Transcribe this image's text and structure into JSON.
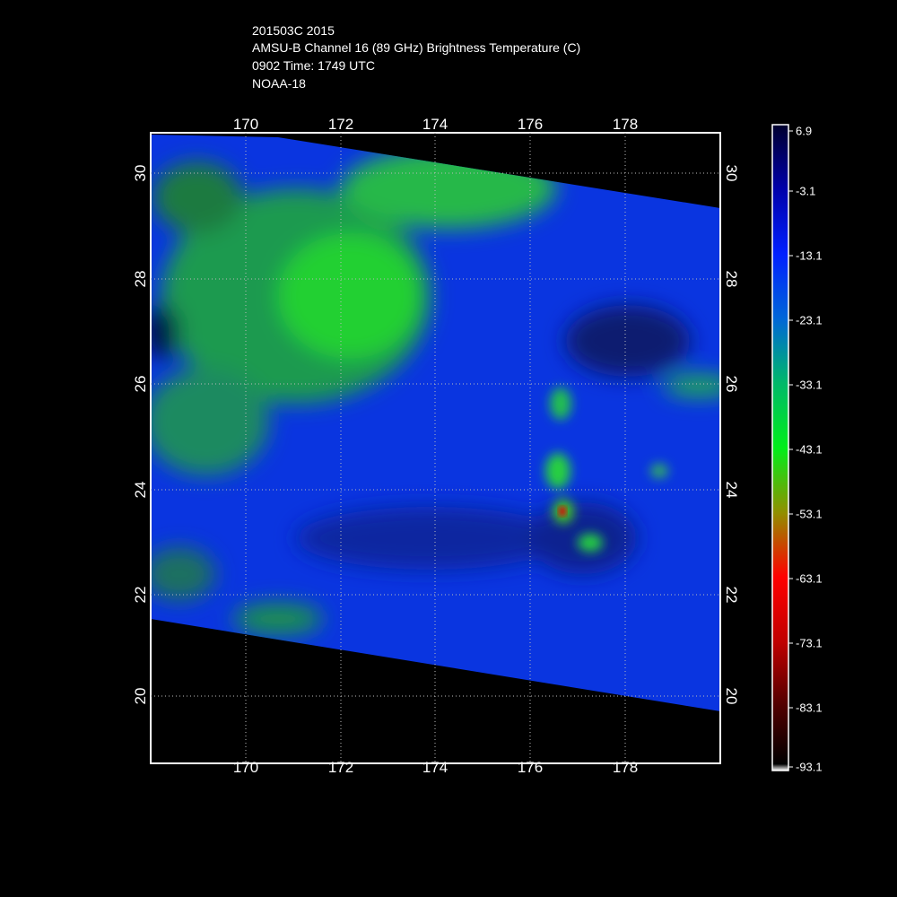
{
  "header": {
    "line1": "201503C 2015",
    "line2": "AMSU-B Channel 16 (89 GHz) Brightness Temperature (C)",
    "line3": "0902 Time: 1749 UTC",
    "line4": "NOAA-18"
  },
  "axes": {
    "lon_ticks": [
      "170",
      "172",
      "174",
      "176",
      "178"
    ],
    "lat_ticks": [
      "30",
      "28",
      "26",
      "24",
      "22",
      "20"
    ],
    "lon_range": [
      168,
      180
    ],
    "lat_range": [
      18.8,
      30.7
    ]
  },
  "colorbar": {
    "labels": [
      "6.9",
      "-3.1",
      "-13.1",
      "-23.1",
      "-33.1",
      "-43.1",
      "-53.1",
      "-63.1",
      "-73.1",
      "-83.1",
      "-93.1"
    ],
    "colors": [
      "#00002e",
      "#0000aa",
      "#0020ff",
      "#0066d8",
      "#00b86a",
      "#00ee1a",
      "#909000",
      "#ff0000",
      "#c00000",
      "#500000",
      "#000000"
    ]
  }
}
